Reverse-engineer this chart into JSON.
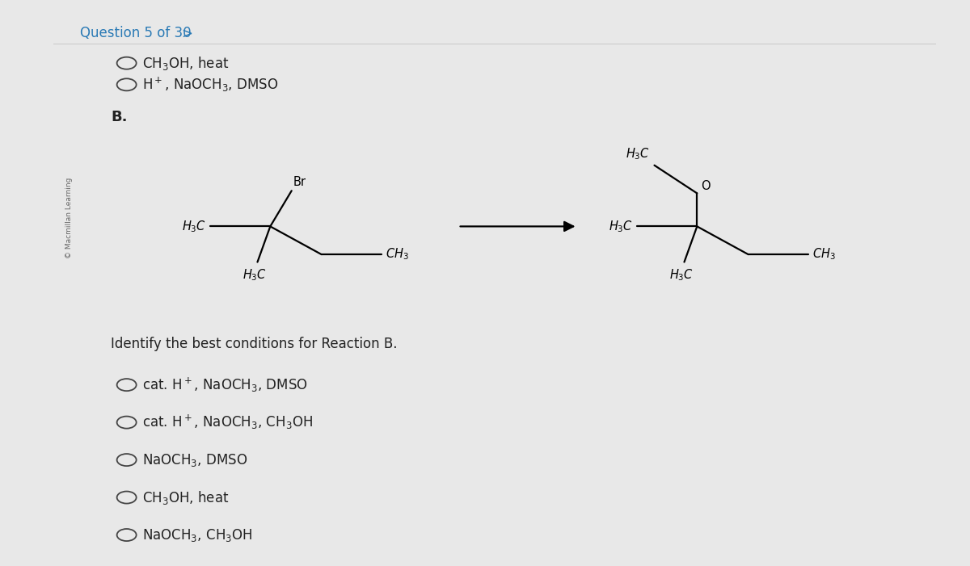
{
  "bg_color": "#e8e8e8",
  "panel_color": "#ffffff",
  "title": "Question 5 of 30",
  "title_color": "#2a7ab5",
  "watermark": "© Macmillan Learning",
  "section_b": "B.",
  "question_text": "Identify the best conditions for Reaction B.",
  "options_top": [
    "CH$_3$OH, heat",
    "H$^+$, NaOCH$_3$, DMSO"
  ],
  "options_bottom": [
    "cat. H$^+$, NaOCH$_3$, DMSO",
    "cat. H$^+$, NaOCH$_3$, CH$_3$OH",
    "NaOCH$_3$, DMSO",
    "CH$_3$OH, heat",
    "NaOCH$_3$, CH$_3$OH"
  ],
  "text_color": "#222222",
  "font_size_title": 12,
  "font_size_body": 12,
  "font_size_chem": 10.5
}
